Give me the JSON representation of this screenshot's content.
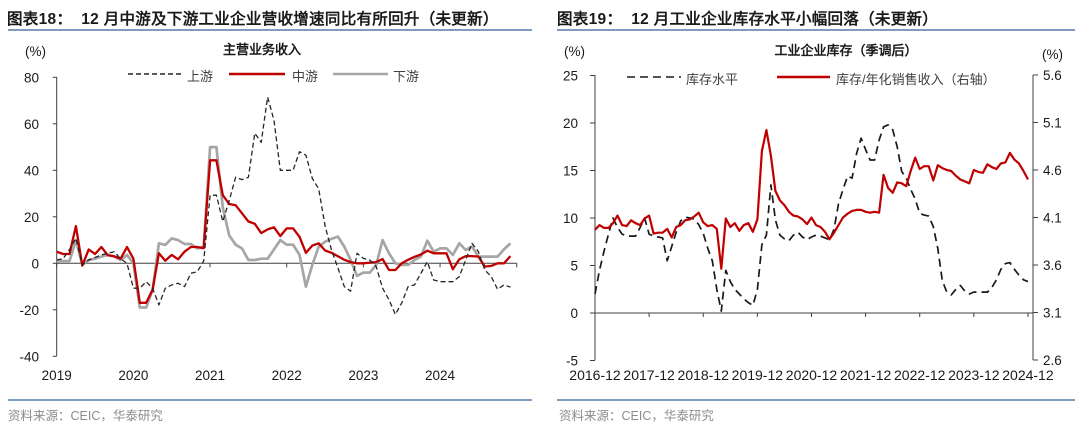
{
  "panels": [
    {
      "figure_label": "图表18：",
      "title": "12 月中游及下游工业企业营收增速同比有所回升（未更新）",
      "source": "资料来源：CEIC，华泰研究"
    },
    {
      "figure_label": "图表19：",
      "title": "12 月工业企业库存水平小幅回落（未更新）",
      "source": "资料来源：CEIC，华泰研究"
    }
  ],
  "colors": {
    "rule": "#7F9BBD",
    "axis": "#404040"
  },
  "chart_data": [
    {
      "type": "line",
      "title": "主营业务收入",
      "ylabel": "(%)",
      "xlabel": "",
      "x_start": "2019-01",
      "x_frequency": "monthly",
      "xtick_labels": [
        "2019",
        "2020",
        "2021",
        "2022",
        "2023",
        "2024"
      ],
      "ylim": [
        -40,
        80
      ],
      "yticks": [
        80,
        60,
        40,
        20,
        0,
        -20,
        -40
      ],
      "ytick_labels": [
        "80",
        "60",
        "40",
        "20",
        "0",
        "-20",
        "-40"
      ],
      "grid": false,
      "legend_position": "top",
      "series": [
        {
          "name": "上游",
          "color": "#262626",
          "line_style": "dashed",
          "values": [
            1.4,
            2,
            6,
            10.7,
            -0.7,
            1.4,
            2.5,
            3.6,
            4.3,
            5,
            2,
            0,
            -10.7,
            -10.7,
            -7.9,
            -10.7,
            -17.9,
            -10.7,
            -9.3,
            -8.6,
            -10,
            -4.3,
            -3.6,
            1,
            29.3,
            29.3,
            18,
            27,
            37,
            36,
            37,
            56,
            52,
            71.5,
            61.5,
            40,
            40,
            40,
            48,
            46.5,
            36.5,
            32,
            16,
            5.7,
            -2,
            -10,
            -12,
            4.3,
            2.1,
            1.4,
            -1.4,
            -10.7,
            -15.7,
            -22,
            -17,
            -10,
            -9.3,
            -4.3,
            0.7,
            -7.2,
            -7.9,
            -7.9,
            -7.9,
            -5.7,
            1.4,
            8.6,
            5,
            -2.9,
            -5.7,
            -11.2,
            -9.3,
            -10.3
          ]
        },
        {
          "name": "中游",
          "color": "#C00000",
          "line_style": "solid",
          "values": [
            5,
            4,
            4,
            16,
            -1,
            6,
            4,
            7,
            3.5,
            3,
            2,
            7,
            2,
            -17,
            -17,
            -11.4,
            4.3,
            1.1,
            3.6,
            1.7,
            5,
            7,
            7,
            6.5,
            44.3,
            44.3,
            29.3,
            25.5,
            25,
            21.5,
            18,
            17,
            13,
            14.6,
            15.5,
            11.7,
            15,
            15,
            11.4,
            4.5,
            7.6,
            8.6,
            5.5,
            4.5,
            3,
            1.5,
            0.5,
            0,
            0,
            0.3,
            0.5,
            1.8,
            -2.9,
            -2.9,
            0,
            1.5,
            2.8,
            3.8,
            5.4,
            4.3,
            4.3,
            4.3,
            -2.6,
            1.7,
            3.1,
            3.1,
            2.9,
            -1.4,
            -1.1,
            0,
            0,
            3.1
          ]
        },
        {
          "name": "下游",
          "color": "#A6A6A6",
          "line_style": "solid",
          "values": [
            1,
            1,
            1,
            10,
            -0.7,
            1.4,
            2,
            2.9,
            3.6,
            2.9,
            1.4,
            3.6,
            0,
            -19,
            -19,
            -11.4,
            8.6,
            7.9,
            10.7,
            10,
            8.3,
            8.3,
            6.4,
            7.2,
            50,
            50,
            24,
            12,
            8,
            6.4,
            1.4,
            1.4,
            2,
            2,
            6,
            10,
            8,
            8,
            3.6,
            -10,
            -0.7,
            7.2,
            9.3,
            10.5,
            11.5,
            7.2,
            1.4,
            -5.4,
            -4,
            -4,
            -0.7,
            10,
            4.3,
            0,
            -0.7,
            -0.7,
            1.4,
            2.9,
            9.7,
            5,
            6.4,
            6.4,
            3.6,
            8.6,
            5.7,
            7.2,
            2.9,
            2.9,
            2.9,
            2.9,
            6,
            8.6
          ]
        }
      ]
    },
    {
      "type": "line",
      "title": "工业企业库存（季调后）",
      "ylabel": "(%)",
      "ylabel_right": "(%)",
      "xlabel": "",
      "x_start": "2016-12",
      "x_frequency": "monthly",
      "xtick_labels": [
        "2016-12",
        "2017-12",
        "2018-12",
        "2019-12",
        "2020-12",
        "2021-12",
        "2022-12",
        "2023-12",
        "2024-12"
      ],
      "ylim": [
        -5,
        25
      ],
      "yticks": [
        25,
        20,
        15,
        10,
        5,
        0,
        -5
      ],
      "ytick_labels": [
        "25",
        "20",
        "15",
        "10",
        "5",
        "0",
        "-5"
      ],
      "ylim_right": [
        2.6,
        5.6
      ],
      "yticks_right": [
        5.6,
        5.1,
        4.6,
        4.1,
        3.6,
        3.1,
        2.6
      ],
      "ytick_labels_right": [
        "5.6",
        "5.1",
        "4.6",
        "4.1",
        "3.6",
        "3.1",
        "2.6"
      ],
      "grid": false,
      "legend_position": "top",
      "series": [
        {
          "name": "库存水平",
          "axis": "left",
          "color": "#1a1a1a",
          "line_style": "dashed",
          "values": [
            2,
            4.5,
            6.5,
            8.3,
            10,
            9,
            8.3,
            8.1,
            8.1,
            8.1,
            9,
            10,
            8.3,
            8.1,
            8,
            7.9,
            5.5,
            7,
            8.5,
            9.7,
            10.1,
            10,
            9.9,
            9.3,
            8.4,
            6.8,
            5.5,
            2.5,
            0.2,
            4.5,
            3.3,
            2.5,
            2,
            1.5,
            1.1,
            0.8,
            2.5,
            7.2,
            8.2,
            13.5,
            9.8,
            8.2,
            7.8,
            7.6,
            8.2,
            8.5,
            8,
            7.7,
            8,
            8.2,
            8.1,
            7.9,
            7.7,
            8.8,
            11.5,
            13,
            14.4,
            14.2,
            16.8,
            18.4,
            17.2,
            16.1,
            16.1,
            18.2,
            19.6,
            19.8,
            19.3,
            17.5,
            14.9,
            14.2,
            13,
            12,
            10.5,
            10.3,
            10.2,
            9.1,
            6.8,
            3.4,
            2.2,
            1.9,
            2.5,
            2.9,
            2.3,
            2,
            2.2,
            2.2,
            2.2,
            2.2,
            2.7,
            3.5,
            4.6,
            5.2,
            5.3,
            4.6,
            4,
            3.5,
            3.3
          ]
        },
        {
          "name": "库存/年化销售收入（右轴）",
          "axis": "right",
          "color": "#C00000",
          "line_style": "solid",
          "values": [
            3.97,
            4.02,
            3.99,
            3.99,
            4.04,
            4.12,
            4.02,
            4.01,
            4.07,
            4.04,
            4.02,
            4.09,
            4.12,
            3.93,
            3.94,
            3.94,
            3.98,
            3.89,
            4.0,
            4.02,
            4.07,
            4.08,
            4.11,
            4.15,
            4.05,
            4.01,
            4.02,
            3.98,
            3.56,
            4.09,
            4.0,
            4.04,
            3.96,
            4.02,
            4.04,
            3.95,
            4.08,
            4.8,
            5.02,
            4.75,
            4.38,
            4.28,
            4.23,
            4.16,
            4.12,
            4.11,
            4.08,
            4.03,
            4.1,
            4.02,
            4.0,
            3.95,
            3.87,
            3.94,
            4.02,
            4.1,
            4.14,
            4.17,
            4.18,
            4.18,
            4.16,
            4.15,
            4.16,
            4.15,
            4.55,
            4.41,
            4.36,
            4.47,
            4.46,
            4.43,
            4.59,
            4.73,
            4.61,
            4.64,
            4.64,
            4.49,
            4.65,
            4.62,
            4.6,
            4.59,
            4.54,
            4.5,
            4.48,
            4.46,
            4.6,
            4.58,
            4.57,
            4.66,
            4.63,
            4.61,
            4.67,
            4.68,
            4.78,
            4.71,
            4.67,
            4.59,
            4.5
          ]
        }
      ]
    }
  ]
}
